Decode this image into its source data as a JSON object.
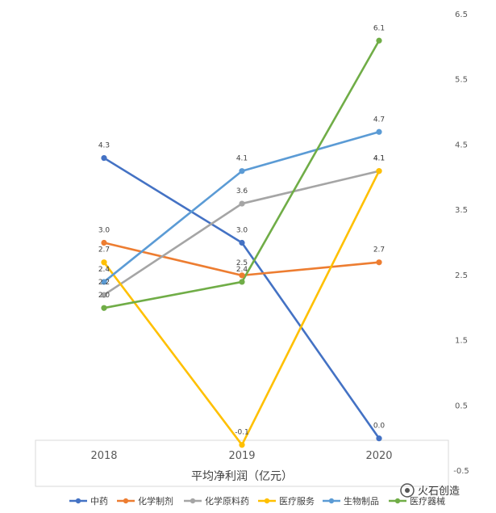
{
  "chart_data": {
    "type": "line",
    "categories": [
      "2018",
      "2019",
      "2020"
    ],
    "xlabel": "平均净利润（亿元）",
    "ylabel": "",
    "ylim": [
      -0.5,
      6.5
    ],
    "yticks": [
      "6.5",
      "5.5",
      "4.5",
      "3.5",
      "2.5",
      "1.5",
      "0.5",
      "-0.5"
    ],
    "ytick_values": [
      6.5,
      5.5,
      4.5,
      3.5,
      2.5,
      1.5,
      0.5,
      -0.5
    ],
    "y_axis_position": "right",
    "grid": false,
    "legend_position": "bottom",
    "series": [
      {
        "name": "中药",
        "color": "#4472C4",
        "values": [
          4.3,
          3.0,
          0.0
        ],
        "labels": [
          "4.3",
          "3.0",
          "0.0"
        ]
      },
      {
        "name": "化学制剂",
        "color": "#ED7D31",
        "values": [
          3.0,
          2.5,
          2.7
        ],
        "labels": [
          "3.0",
          "2.5",
          "2.7"
        ]
      },
      {
        "name": "化学原料药",
        "color": "#A5A5A5",
        "values": [
          2.2,
          3.6,
          4.1
        ],
        "labels": [
          "2.2",
          "3.6",
          "4.1"
        ]
      },
      {
        "name": "医疗服务",
        "color": "#FFC000",
        "values": [
          2.7,
          -0.1,
          4.1
        ],
        "labels": [
          "2.7",
          "-0.1",
          "4.1"
        ]
      },
      {
        "name": "生物制品",
        "color": "#5B9BD5",
        "values": [
          2.4,
          4.1,
          4.7
        ],
        "labels": [
          "2.4",
          "4.1",
          "4.7"
        ]
      },
      {
        "name": "医疗器械",
        "color": "#70AD47",
        "values": [
          2.0,
          2.4,
          6.1
        ],
        "labels": [
          "2.0",
          "2.4",
          "6.1"
        ]
      }
    ]
  },
  "watermark": {
    "text": "火石创造"
  }
}
